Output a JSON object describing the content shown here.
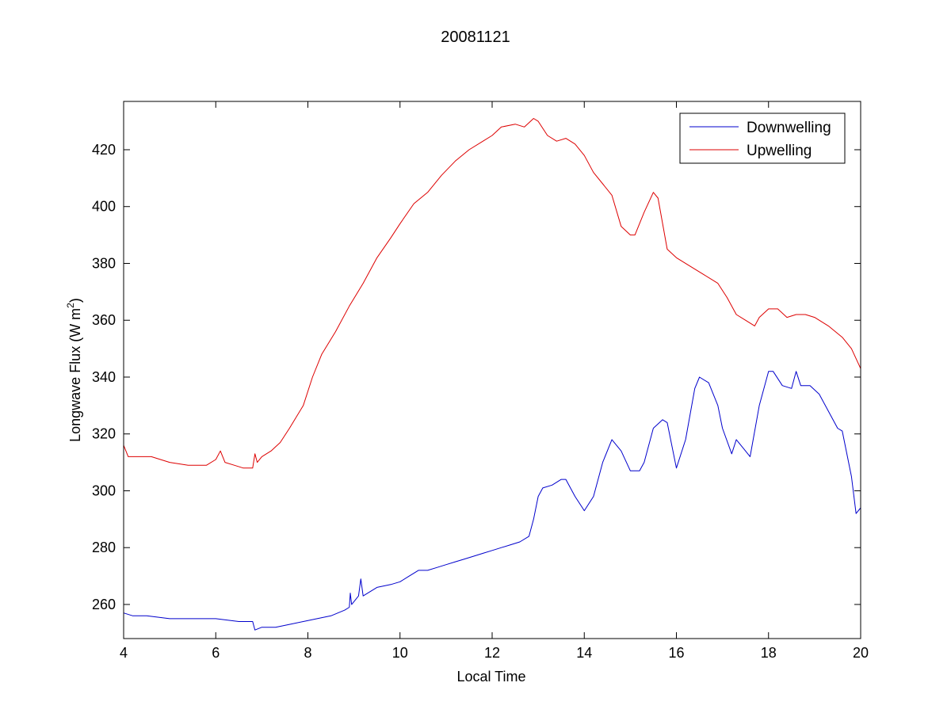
{
  "chart_data": {
    "type": "line",
    "title": "20081121",
    "xlabel": "Local Time",
    "ylabel_main": "Longwave Flux (W m",
    "ylabel_sup": "2",
    "ylabel_close": ")",
    "xlim": [
      4,
      20
    ],
    "ylim": [
      248,
      437
    ],
    "xticks": [
      4,
      6,
      8,
      10,
      12,
      14,
      16,
      18,
      20
    ],
    "yticks": [
      260,
      280,
      300,
      320,
      340,
      360,
      380,
      400,
      420
    ],
    "grid": false,
    "legend_position": "top-right",
    "series": [
      {
        "name": "Downwelling",
        "color": "#0000cc",
        "x": [
          4.0,
          4.2,
          4.5,
          5.0,
          5.5,
          6.0,
          6.5,
          6.8,
          6.85,
          7.0,
          7.3,
          7.6,
          7.9,
          8.2,
          8.5,
          8.8,
          8.9,
          8.92,
          8.95,
          9.0,
          9.1,
          9.15,
          9.2,
          9.3,
          9.5,
          9.8,
          10.0,
          10.2,
          10.4,
          10.6,
          10.8,
          11.0,
          11.2,
          11.4,
          11.6,
          11.8,
          12.0,
          12.2,
          12.4,
          12.6,
          12.8,
          12.9,
          13.0,
          13.1,
          13.3,
          13.5,
          13.6,
          13.8,
          14.0,
          14.2,
          14.4,
          14.6,
          14.8,
          15.0,
          15.2,
          15.3,
          15.5,
          15.7,
          15.8,
          16.0,
          16.2,
          16.4,
          16.5,
          16.7,
          16.9,
          17.0,
          17.2,
          17.3,
          17.5,
          17.6,
          17.8,
          18.0,
          18.1,
          18.3,
          18.5,
          18.6,
          18.7,
          18.9,
          19.1,
          19.3,
          19.5,
          19.6,
          19.8,
          19.9,
          20.0
        ],
        "y": [
          257,
          256,
          256,
          255,
          255,
          255,
          254,
          254,
          251,
          252,
          252,
          253,
          254,
          255,
          256,
          258,
          259,
          264,
          260,
          261,
          263,
          269,
          263,
          264,
          266,
          267,
          268,
          270,
          272,
          272,
          273,
          274,
          275,
          276,
          277,
          278,
          279,
          280,
          281,
          282,
          284,
          290,
          298,
          301,
          302,
          304,
          304,
          298,
          293,
          298,
          310,
          318,
          314,
          307,
          307,
          310,
          322,
          325,
          324,
          308,
          318,
          336,
          340,
          338,
          330,
          322,
          313,
          318,
          314,
          312,
          330,
          342,
          342,
          337,
          336,
          342,
          337,
          337,
          334,
          328,
          322,
          321,
          305,
          292,
          294
        ]
      },
      {
        "name": "Upwelling",
        "color": "#dd0000",
        "x": [
          4.0,
          4.1,
          4.3,
          4.6,
          5.0,
          5.4,
          5.8,
          6.0,
          6.1,
          6.2,
          6.4,
          6.6,
          6.8,
          6.85,
          6.9,
          7.0,
          7.2,
          7.4,
          7.6,
          7.9,
          8.1,
          8.3,
          8.6,
          8.9,
          9.2,
          9.5,
          9.8,
          10.0,
          10.3,
          10.6,
          10.9,
          11.2,
          11.5,
          11.8,
          12.0,
          12.2,
          12.5,
          12.7,
          12.9,
          13.0,
          13.2,
          13.4,
          13.6,
          13.8,
          14.0,
          14.2,
          14.4,
          14.6,
          14.8,
          15.0,
          15.1,
          15.3,
          15.5,
          15.6,
          15.8,
          16.0,
          16.3,
          16.6,
          16.9,
          17.1,
          17.3,
          17.5,
          17.7,
          17.8,
          18.0,
          18.2,
          18.4,
          18.6,
          18.8,
          19.0,
          19.3,
          19.6,
          19.8,
          20.0
        ],
        "y": [
          316,
          312,
          312,
          312,
          310,
          309,
          309,
          311,
          314,
          310,
          309,
          308,
          308,
          313,
          310,
          312,
          314,
          317,
          322,
          330,
          340,
          348,
          356,
          365,
          373,
          382,
          389,
          394,
          401,
          405,
          411,
          416,
          420,
          423,
          425,
          428,
          429,
          428,
          431,
          430,
          425,
          423,
          424,
          422,
          418,
          412,
          408,
          404,
          393,
          390,
          390,
          398,
          405,
          403,
          385,
          382,
          379,
          376,
          373,
          368,
          362,
          360,
          358,
          361,
          364,
          364,
          361,
          362,
          362,
          361,
          358,
          354,
          350,
          343
        ]
      }
    ]
  }
}
